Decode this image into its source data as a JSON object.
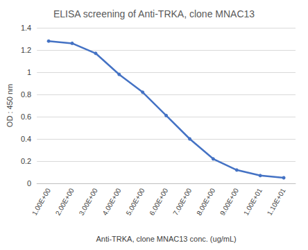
{
  "chart_data": {
    "type": "line",
    "title": "ELISA screening of Anti-TRKA, clone MNAC13",
    "x_label": "Anti-TRKA, clone MNAC13 conc. (ug/mL)",
    "y_label": "OD : 450 nm",
    "categories": [
      "1.00E+00",
      "2.00E+00",
      "3.00E+00",
      "4.00E+00",
      "5.00E+00",
      "6.00E+00",
      "7.00E+00",
      "8.00E+00",
      "9.00E+00",
      "1.00E+01",
      "1.10E+01"
    ],
    "values": [
      1.28,
      1.26,
      1.17,
      0.98,
      0.82,
      0.61,
      0.4,
      0.22,
      0.12,
      0.07,
      0.05
    ],
    "color": "#4472c4",
    "marker": "circle",
    "ylim": [
      0,
      1.4
    ],
    "yticks": [
      0,
      0.2,
      0.4,
      0.6,
      0.8,
      1,
      1.2,
      1.4
    ],
    "grid": true
  }
}
